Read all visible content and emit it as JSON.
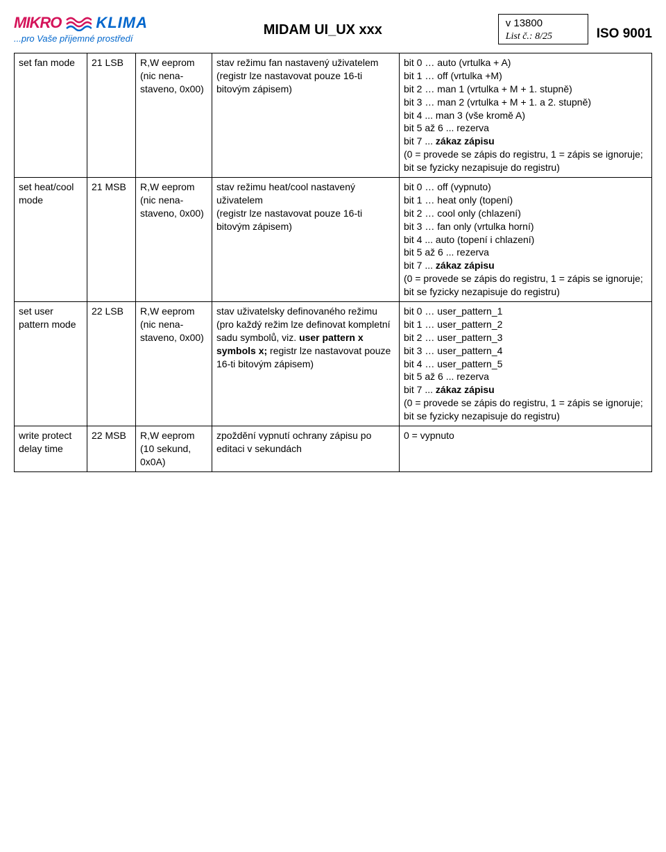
{
  "header": {
    "logo_left": "MIKRO",
    "logo_right": "KLIMA",
    "tagline": "...pro Vaše příjemné prostředí",
    "title": "MIDAM UI_UX xxx",
    "version": "v 13800",
    "list_label": "List č.: 8/25",
    "iso": "ISO 9001",
    "wave_color1": "#d4145a",
    "wave_color2": "#0066cc"
  },
  "rows": [
    {
      "c1": "set fan mode",
      "c2": "21 LSB",
      "c3": "R,W eeprom (nic nena-staveno, 0x00)",
      "c4": "stav režimu fan nastavený uživatelem\n(registr lze nastavovat pouze 16-ti bitovým zápisem)",
      "c5_pre": "bit 0 … auto (vrtulka + A)\nbit 1 … off (vrtulka +M)\nbit 2 … man 1 (vrtulka + M + 1. stupně)\nbit 3 … man 2 (vrtulka + M + 1. a 2. stupně)\nbit 4 ... man 3 (vše kromě A)\nbit 5 až 6 ... rezerva\nbit 7 ... ",
      "c5_bold": "zákaz zápisu",
      "c5_post": "\n(0 = provede se zápis do registru, 1 = zápis se ignoruje; bit se fyzicky nezapisuje do registru)"
    },
    {
      "c1": "set heat/cool mode",
      "c2": "21 MSB",
      "c3": "R,W eeprom (nic nena-staveno, 0x00)",
      "c4": "stav režimu heat/cool nastavený uživatelem\n(registr lze nastavovat pouze 16-ti bitovým zápisem)",
      "c5_pre": "bit 0 … off (vypnuto)\nbit 1 … heat only (topení)\nbit 2 … cool only (chlazení)\nbit 3 … fan only (vrtulka horní)\nbit 4 ... auto (topení i chlazení)\nbit 5 až 6 ... rezerva\nbit 7 ... ",
      "c5_bold": "zákaz zápisu",
      "c5_post": "\n(0 = provede se zápis do registru, 1 = zápis se ignoruje; bit se fyzicky nezapisuje do registru)"
    },
    {
      "c1": "set user pattern mode",
      "c2": "22 LSB",
      "c3": "R,W eeprom (nic nena-staveno, 0x00)",
      "c4_pre": "stav uživatelsky definovaného režimu (pro každý režim lze definovat kompletní sadu symbolů, viz. ",
      "c4_bold": "user pattern x symbols x;",
      "c4_post": " registr lze nastavovat pouze 16-ti bitovým zápisem)",
      "c5_pre": "bit 0 … user_pattern_1\nbit 1 … user_pattern_2\nbit 2 … user_pattern_3\nbit 3 … user_pattern_4\nbit 4 … user_pattern_5\nbit 5 až 6 ... rezerva\nbit 7 ... ",
      "c5_bold": "zákaz zápisu",
      "c5_post": "\n(0 = provede se zápis do registru, 1 = zápis se ignoruje; bit se fyzicky nezapisuje do registru)"
    },
    {
      "c1": "write protect delay time",
      "c2": "22 MSB",
      "c3": "R,W eeprom (10 sekund, 0x0A)",
      "c4": "zpoždění vypnutí ochrany zápisu po editaci v sekundách",
      "c5_pre": "0 = vypnuto",
      "c5_bold": "",
      "c5_post": ""
    }
  ]
}
